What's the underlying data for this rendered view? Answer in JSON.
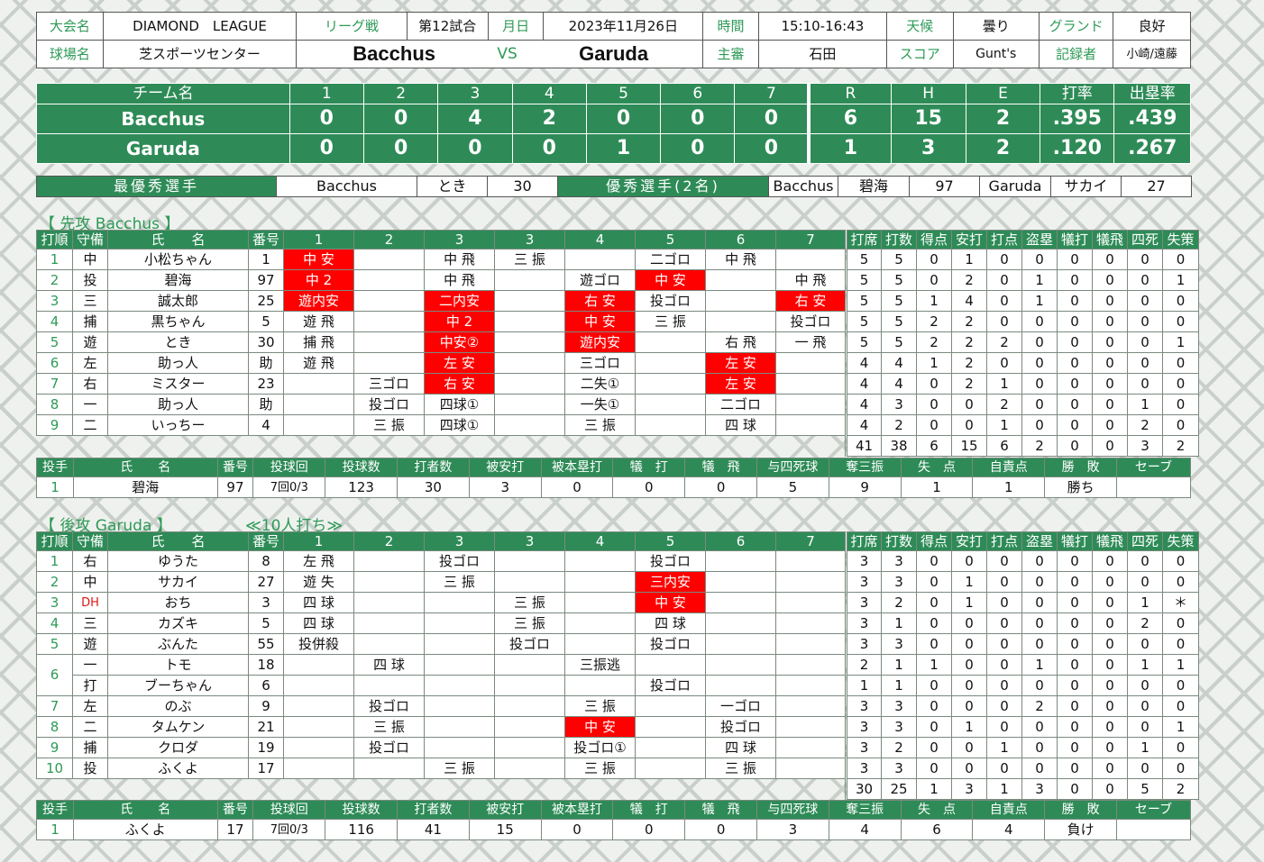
{
  "info": {
    "tournament_label": "大会名",
    "tournament": "DIAMOND　LEAGUE",
    "type_label": "リーグ戦",
    "game_no": "第12試合",
    "date_label": "月日",
    "date": "2023年11月26日",
    "time_label": "時間",
    "time": "15:10-16:43",
    "weather_label": "天候",
    "weather": "曇り",
    "ground_label": "グランド",
    "ground": "良好",
    "venue_label": "球場名",
    "venue": "芝スポーツセンター",
    "home_team": "Bacchus",
    "vs": "VS",
    "away_team": "Garuda",
    "umpire_label": "主審",
    "umpire": "石田",
    "score_label": "スコア",
    "scorer": "Gunt's",
    "recorder_label": "記録者",
    "recorder": "小崎/遠藤"
  },
  "scoreboard": {
    "headers": [
      "チーム名",
      "1",
      "2",
      "3",
      "4",
      "5",
      "6",
      "7",
      "R",
      "H",
      "E",
      "打率",
      "出塁率"
    ],
    "rows": [
      {
        "team": "Bacchus",
        "innings": [
          "0",
          "0",
          "4",
          "2",
          "0",
          "0",
          "0"
        ],
        "R": "6",
        "H": "15",
        "E": "2",
        "avg": ".395",
        "obp": ".439"
      },
      {
        "team": "Garuda",
        "innings": [
          "0",
          "0",
          "0",
          "0",
          "1",
          "0",
          "0"
        ],
        "R": "1",
        "H": "3",
        "E": "2",
        "avg": ".120",
        "obp": ".267"
      }
    ]
  },
  "mvp": {
    "best_label": "最優秀選手",
    "best_team": "Bacchus",
    "best_name": "とき",
    "best_no": "30",
    "good_label": "優秀選手(2名)",
    "good": [
      {
        "team": "Bacchus",
        "name": "碧海",
        "no": "97"
      },
      {
        "team": "Garuda",
        "name": "サカイ",
        "no": "27"
      }
    ]
  },
  "batting_headers": [
    "打順",
    "守備",
    "氏　　名",
    "番号",
    "1",
    "2",
    "3",
    "3",
    "4",
    "5",
    "6",
    "7",
    "打席",
    "打数",
    "得点",
    "安打",
    "打点",
    "盗塁",
    "犠打",
    "犠飛",
    "四死",
    "失策"
  ],
  "pitching_headers": [
    "投手",
    "氏　　名",
    "番号",
    "投球回",
    "投球数",
    "打者数",
    "被安打",
    "被本塁打",
    "犠　打",
    "犠　飛",
    "与四死球",
    "奪三振",
    "失　点",
    "自責点",
    "勝　敗",
    "セーブ"
  ],
  "top": {
    "title": "【 先攻 Bacchus 】",
    "rows": [
      {
        "order": "1",
        "pos": "中",
        "name": "小松ちゃん",
        "no": "1",
        "ab": [
          {
            "t": "中 安",
            "h": 1
          },
          "",
          "中 飛",
          "三 振",
          "",
          "二ゴロ",
          "中 飛",
          ""
        ],
        "st": [
          "5",
          "5",
          "0",
          "1",
          "0",
          "0",
          "0",
          "0",
          "0",
          "0"
        ]
      },
      {
        "order": "2",
        "pos": "投",
        "name": "碧海",
        "no": "97",
        "ab": [
          {
            "t": "中 2",
            "h": 1
          },
          "",
          "中 飛",
          "",
          "遊ゴロ",
          {
            "t": "中 安",
            "h": 1
          },
          "",
          "中 飛"
        ],
        "st": [
          "5",
          "5",
          "0",
          "2",
          "0",
          "1",
          "0",
          "0",
          "0",
          "1"
        ]
      },
      {
        "order": "3",
        "pos": "三",
        "name": "誠太郎",
        "no": "25",
        "ab": [
          {
            "t": "遊内安",
            "h": 1
          },
          "",
          {
            "t": "二内安",
            "h": 1
          },
          "",
          {
            "t": "右 安",
            "h": 1
          },
          "投ゴロ",
          "",
          {
            "t": "右 安",
            "h": 1
          }
        ],
        "st": [
          "5",
          "5",
          "1",
          "4",
          "0",
          "1",
          "0",
          "0",
          "0",
          "0"
        ]
      },
      {
        "order": "4",
        "pos": "捕",
        "name": "黒ちゃん",
        "no": "5",
        "ab": [
          "遊 飛",
          "",
          {
            "t": "中 2",
            "h": 1
          },
          "",
          {
            "t": "中 安",
            "h": 1
          },
          "三 振",
          "",
          "投ゴロ"
        ],
        "st": [
          "5",
          "5",
          "2",
          "2",
          "0",
          "0",
          "0",
          "0",
          "0",
          "0"
        ]
      },
      {
        "order": "5",
        "pos": "遊",
        "name": "とき",
        "no": "30",
        "ab": [
          "捕 飛",
          "",
          {
            "t": "中安②",
            "h": 1
          },
          "",
          {
            "t": "遊内安",
            "h": 1
          },
          "",
          "右 飛",
          "一 飛"
        ],
        "st": [
          "5",
          "5",
          "2",
          "2",
          "2",
          "0",
          "0",
          "0",
          "0",
          "1"
        ]
      },
      {
        "order": "6",
        "pos": "左",
        "name": "助っ人",
        "no": "助",
        "ab": [
          "遊 飛",
          "",
          {
            "t": "左 安",
            "h": 1
          },
          "",
          "三ゴロ",
          "",
          {
            "t": "左 安",
            "h": 1
          },
          ""
        ],
        "st": [
          "4",
          "4",
          "1",
          "2",
          "0",
          "0",
          "0",
          "0",
          "0",
          "0"
        ]
      },
      {
        "order": "7",
        "pos": "右",
        "name": "ミスター",
        "no": "23",
        "ab": [
          "",
          "三ゴロ",
          {
            "t": "右 安",
            "h": 1
          },
          "",
          "二失①",
          "",
          {
            "t": "左 安",
            "h": 1
          },
          ""
        ],
        "st": [
          "4",
          "4",
          "0",
          "2",
          "1",
          "0",
          "0",
          "0",
          "0",
          "0"
        ]
      },
      {
        "order": "8",
        "pos": "一",
        "name": "助っ人",
        "no": "助",
        "ab": [
          "",
          "投ゴロ",
          "四球①",
          "",
          "一失①",
          "",
          "二ゴロ",
          ""
        ],
        "st": [
          "4",
          "3",
          "0",
          "0",
          "2",
          "0",
          "0",
          "0",
          "1",
          "0"
        ]
      },
      {
        "order": "9",
        "pos": "二",
        "name": "いっちー",
        "no": "4",
        "ab": [
          "",
          "三 振",
          "四球①",
          "",
          "三 振",
          "",
          "四 球",
          ""
        ],
        "st": [
          "4",
          "2",
          "0",
          "0",
          "1",
          "0",
          "0",
          "0",
          "2",
          "0"
        ]
      }
    ],
    "totals": [
      "41",
      "38",
      "6",
      "15",
      "6",
      "2",
      "0",
      "0",
      "3",
      "2"
    ],
    "pitcher": {
      "n": "1",
      "name": "碧海",
      "no": "97",
      "ip": "7回0/3",
      "pitches": "123",
      "batters": "30",
      "hits": "3",
      "hr": "0",
      "sac": "0",
      "sf": "0",
      "bb": "5",
      "k": "9",
      "runs": "1",
      "er": "1",
      "result": "勝ち",
      "save": ""
    }
  },
  "bottom": {
    "title": "【 後攻 Garuda 】",
    "note": "≪10人打ち≫",
    "rows": [
      {
        "order": "1",
        "pos": "右",
        "name": "ゆうた",
        "no": "8",
        "ab": [
          "左 飛",
          "",
          "投ゴロ",
          "",
          "",
          "投ゴロ",
          "",
          ""
        ],
        "st": [
          "3",
          "3",
          "0",
          "0",
          "0",
          "0",
          "0",
          "0",
          "0",
          "0"
        ]
      },
      {
        "order": "2",
        "pos": "中",
        "name": "サカイ",
        "no": "27",
        "ab": [
          "遊 失",
          "",
          "三 振",
          "",
          "",
          {
            "t": "三内安",
            "h": 1
          },
          "",
          ""
        ],
        "st": [
          "3",
          "3",
          "0",
          "1",
          "0",
          "0",
          "0",
          "0",
          "0",
          "0"
        ]
      },
      {
        "order": "3",
        "pos": "DH",
        "name": "おち",
        "no": "3",
        "ab": [
          "四 球",
          "",
          "",
          "三 振",
          "",
          {
            "t": "中 安",
            "h": 1
          },
          "",
          ""
        ],
        "st": [
          "3",
          "2",
          "0",
          "1",
          "0",
          "0",
          "0",
          "0",
          "1",
          "＊"
        ]
      },
      {
        "order": "4",
        "pos": "三",
        "name": "カズキ",
        "no": "5",
        "ab": [
          "四 球",
          "",
          "",
          "三 振",
          "",
          "四 球",
          "",
          ""
        ],
        "st": [
          "3",
          "1",
          "0",
          "0",
          "0",
          "0",
          "0",
          "0",
          "2",
          "0"
        ]
      },
      {
        "order": "5",
        "pos": "遊",
        "name": "ぶんた",
        "no": "55",
        "ab": [
          "投併殺",
          "",
          "",
          "投ゴロ",
          "",
          "投ゴロ",
          "",
          ""
        ],
        "st": [
          "3",
          "3",
          "0",
          "0",
          "0",
          "0",
          "0",
          "0",
          "0",
          "0"
        ]
      },
      {
        "order": "6",
        "pos": "一",
        "name": "トモ",
        "no": "18",
        "ab": [
          "",
          "四 球",
          "",
          "",
          "三振逃",
          "",
          "",
          ""
        ],
        "st": [
          "2",
          "1",
          "1",
          "0",
          "0",
          "1",
          "0",
          "0",
          "1",
          "1"
        ]
      },
      {
        "order": "",
        "pos": "打",
        "name": "ブーちゃん",
        "no": "6",
        "ab": [
          "",
          "",
          "",
          "",
          "",
          "投ゴロ",
          "",
          ""
        ],
        "st": [
          "1",
          "1",
          "0",
          "0",
          "0",
          "0",
          "0",
          "0",
          "0",
          "0"
        ]
      },
      {
        "order": "7",
        "pos": "左",
        "name": "のぶ",
        "no": "9",
        "ab": [
          "",
          "投ゴロ",
          "",
          "",
          "三 振",
          "",
          "一ゴロ",
          ""
        ],
        "st": [
          "3",
          "3",
          "0",
          "0",
          "0",
          "2",
          "0",
          "0",
          "0",
          "0"
        ]
      },
      {
        "order": "8",
        "pos": "二",
        "name": "タムケン",
        "no": "21",
        "ab": [
          "",
          "三 振",
          "",
          "",
          {
            "t": "中 安",
            "h": 1
          },
          "",
          "投ゴロ",
          ""
        ],
        "st": [
          "3",
          "3",
          "0",
          "1",
          "0",
          "0",
          "0",
          "0",
          "0",
          "1"
        ]
      },
      {
        "order": "9",
        "pos": "捕",
        "name": "クロダ",
        "no": "19",
        "ab": [
          "",
          "投ゴロ",
          "",
          "",
          "投ゴロ①",
          "",
          "四 球",
          ""
        ],
        "st": [
          "3",
          "2",
          "0",
          "0",
          "1",
          "0",
          "0",
          "0",
          "1",
          "0"
        ]
      },
      {
        "order": "10",
        "pos": "投",
        "name": "ふくよ",
        "no": "17",
        "ab": [
          "",
          "",
          "三 振",
          "",
          "三 振",
          "",
          "三 振",
          ""
        ],
        "st": [
          "3",
          "3",
          "0",
          "0",
          "0",
          "0",
          "0",
          "0",
          "0",
          "0"
        ]
      }
    ],
    "totals": [
      "30",
      "25",
      "1",
      "3",
      "1",
      "3",
      "0",
      "0",
      "5",
      "2"
    ],
    "pitcher": {
      "n": "1",
      "name": "ふくよ",
      "no": "17",
      "ip": "7回0/3",
      "pitches": "116",
      "batters": "41",
      "hits": "15",
      "hr": "0",
      "sac": "0",
      "sf": "0",
      "bb": "3",
      "k": "4",
      "runs": "6",
      "er": "4",
      "result": "負け",
      "save": ""
    }
  },
  "colors": {
    "accent": "#2e8b57",
    "hit": "#ff0000",
    "label": "#2e9a57"
  }
}
